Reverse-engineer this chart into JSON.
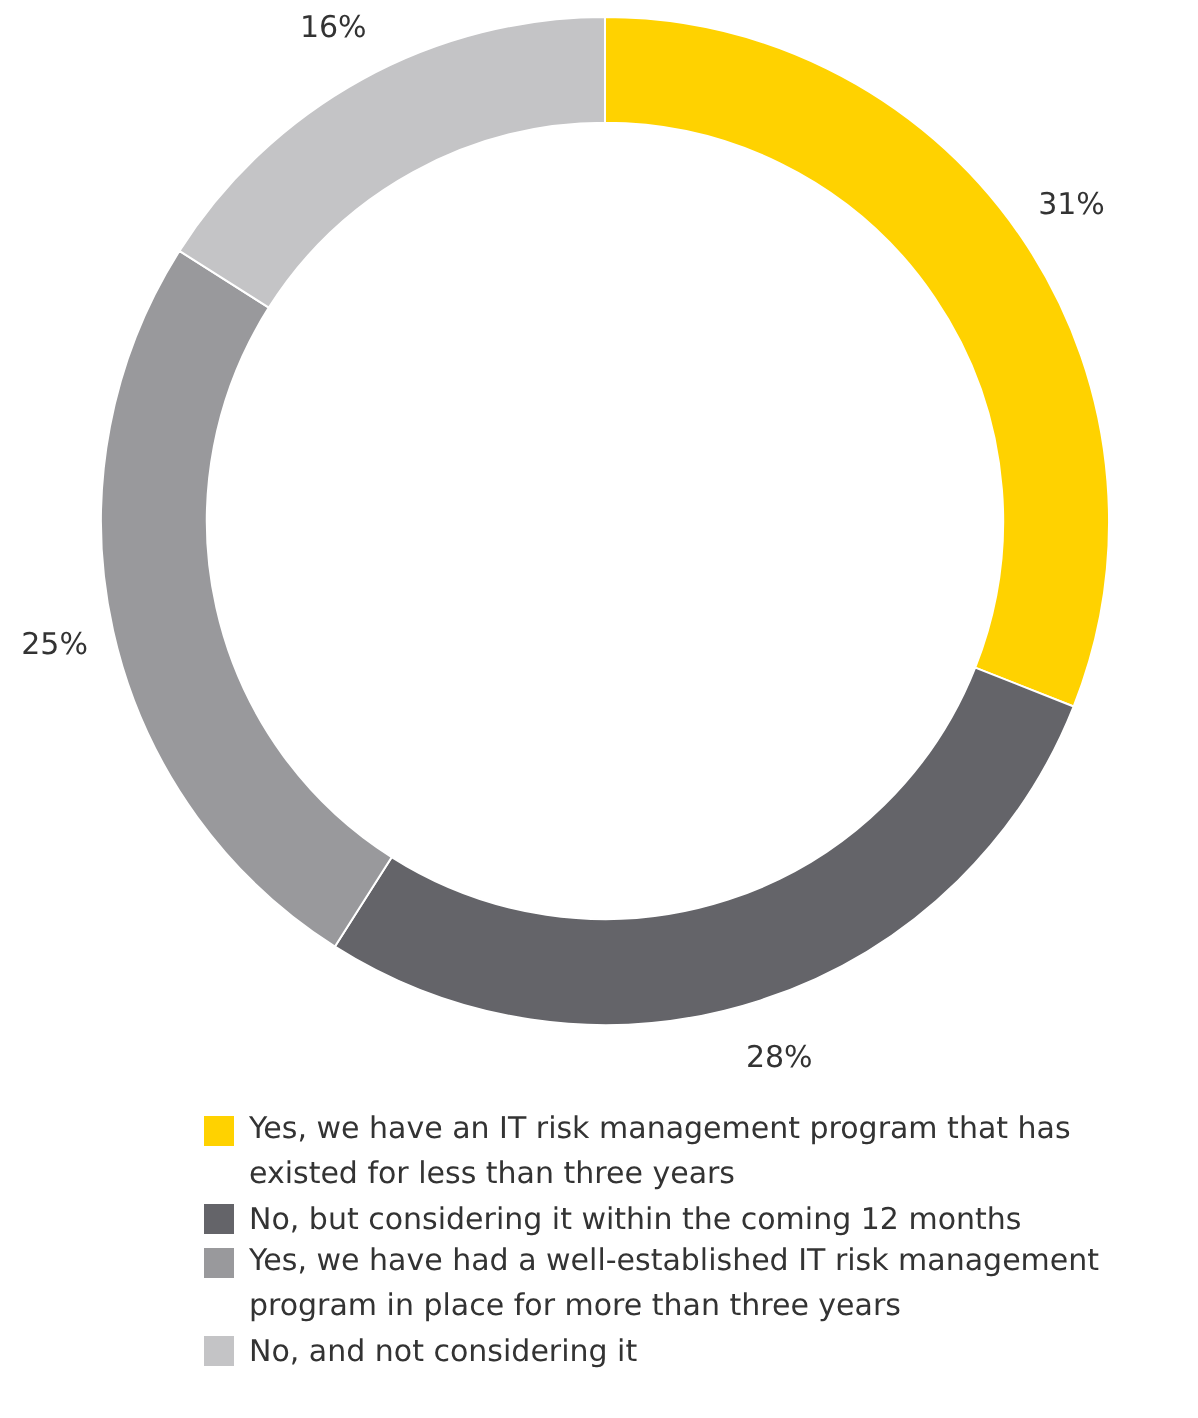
{
  "chart_data": {
    "type": "donut",
    "categories": [
      "Yes, we have an IT risk management program that has existed for less than three years",
      "No, but considering it within the coming 12 months",
      "Yes, we have had a well-established IT risk management program in place for more than three years",
      "No, and not considering it"
    ],
    "values": [
      31,
      28,
      25,
      16
    ],
    "colors": [
      "#ffd200",
      "#646469",
      "#99999c",
      "#c4c4c6"
    ],
    "legend": "bottom",
    "value_labels": [
      "31%",
      "28%",
      "25%",
      "16%"
    ]
  }
}
